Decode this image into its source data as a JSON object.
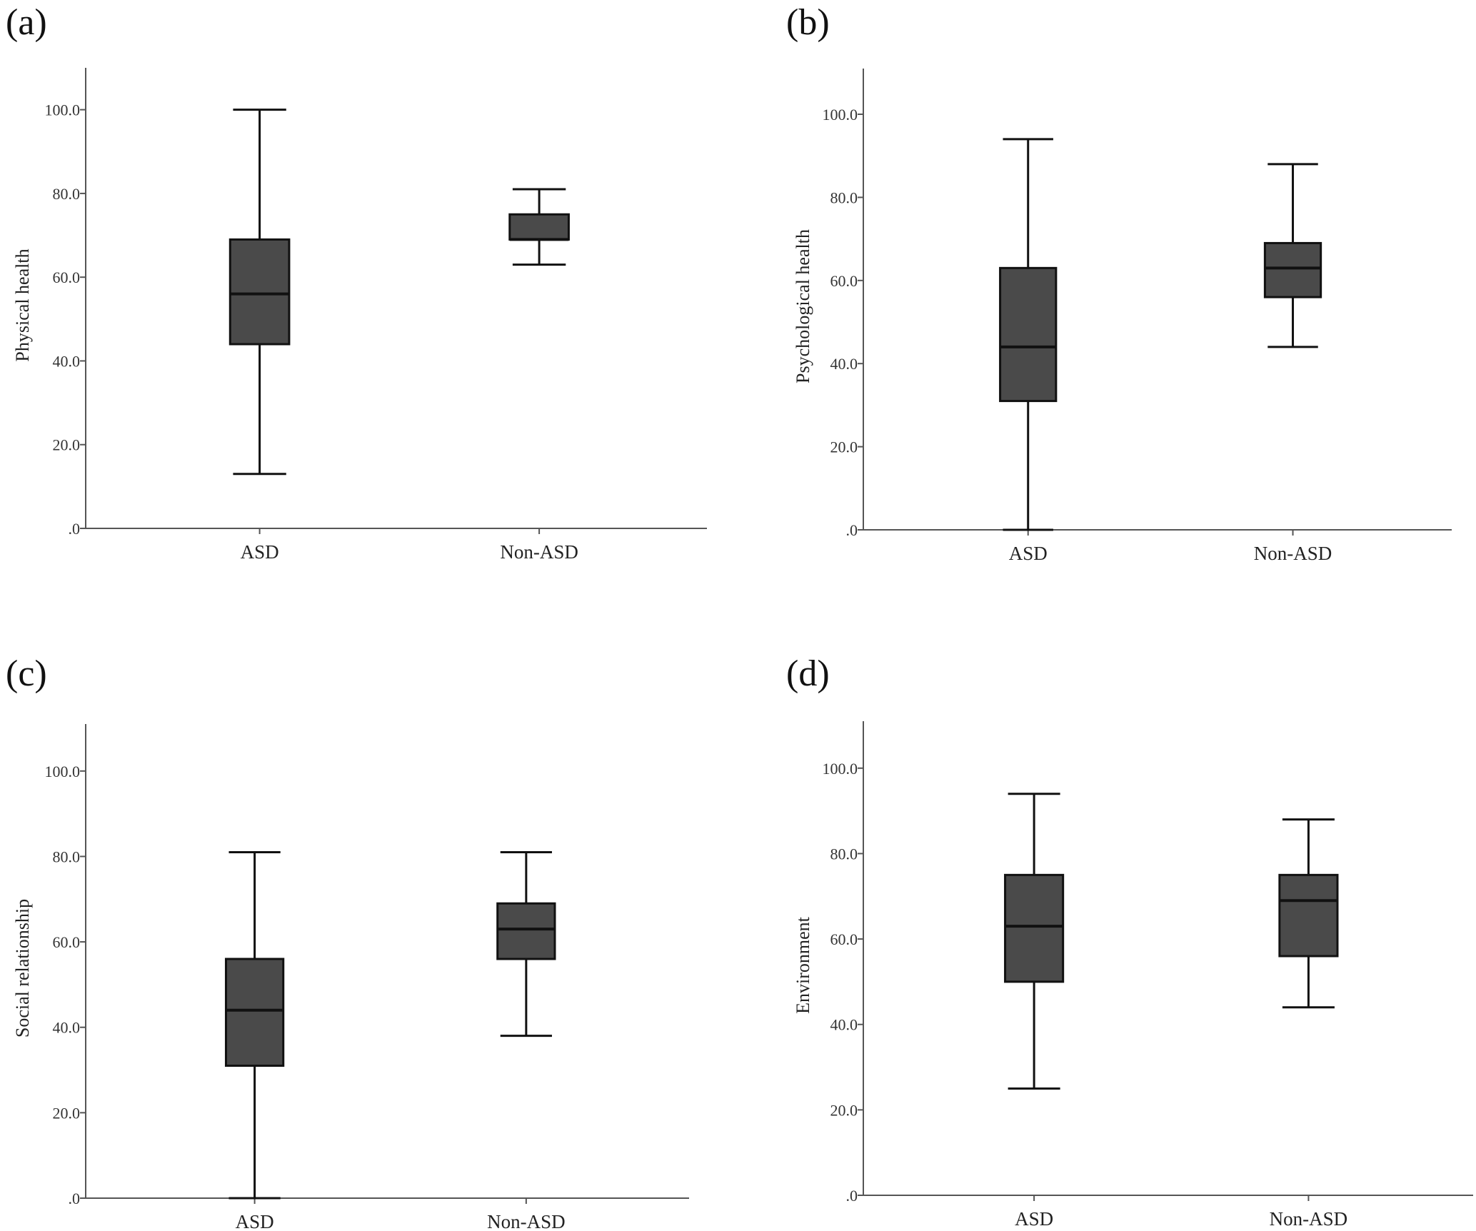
{
  "chart_data": [
    {
      "type": "box",
      "panel_label": "(a)",
      "ylabel": "Physical health",
      "ylim": [
        0,
        110
      ],
      "yticks": [
        ".0",
        "20.0",
        "40.0",
        "60.0",
        "80.0",
        "100.0"
      ],
      "categories": [
        "ASD",
        "Non-ASD"
      ],
      "boxes": [
        {
          "category": "ASD",
          "min": 13,
          "q1": 44,
          "median": 56,
          "q3": 69,
          "max": 100
        },
        {
          "category": "Non-ASD",
          "min": 63,
          "q1": 69,
          "median": 69,
          "q3": 75,
          "max": 81
        }
      ],
      "grid": false
    },
    {
      "type": "box",
      "panel_label": "(b)",
      "ylabel": "Psychological health",
      "ylim": [
        0,
        111
      ],
      "yticks": [
        ".0",
        "20.0",
        "40.0",
        "60.0",
        "80.0",
        "100.0"
      ],
      "categories": [
        "ASD",
        "Non-ASD"
      ],
      "boxes": [
        {
          "category": "ASD",
          "min": 0,
          "q1": 31,
          "median": 44,
          "q3": 63,
          "max": 94
        },
        {
          "category": "Non-ASD",
          "min": 44,
          "q1": 56,
          "median": 63,
          "q3": 69,
          "max": 88
        }
      ],
      "grid": false
    },
    {
      "type": "box",
      "panel_label": "(c)",
      "ylabel": "Social relationship",
      "ylim": [
        0,
        111
      ],
      "yticks": [
        ".0",
        "20.0",
        "40.0",
        "60.0",
        "80.0",
        "100.0"
      ],
      "categories": [
        "ASD",
        "Non-ASD"
      ],
      "boxes": [
        {
          "category": "ASD",
          "min": 0,
          "q1": 31,
          "median": 44,
          "q3": 56,
          "max": 81
        },
        {
          "category": "Non-ASD",
          "min": 38,
          "q1": 56,
          "median": 63,
          "q3": 69,
          "max": 81
        }
      ],
      "grid": false
    },
    {
      "type": "box",
      "panel_label": "(d)",
      "ylabel": "Environment",
      "ylim": [
        0,
        111
      ],
      "yticks": [
        ".0",
        "20.0",
        "40.0",
        "60.0",
        "80.0",
        "100.0"
      ],
      "categories": [
        "ASD",
        "Non-ASD"
      ],
      "boxes": [
        {
          "category": "ASD",
          "min": 25,
          "q1": 50,
          "median": 63,
          "q3": 75,
          "max": 94
        },
        {
          "category": "Non-ASD",
          "min": 44,
          "q1": 56,
          "median": 69,
          "q3": 75,
          "max": 88
        }
      ],
      "grid": false
    }
  ],
  "colors": {
    "box_fill": "#4a4a4a",
    "line": "#111111",
    "axis": "#555555"
  }
}
